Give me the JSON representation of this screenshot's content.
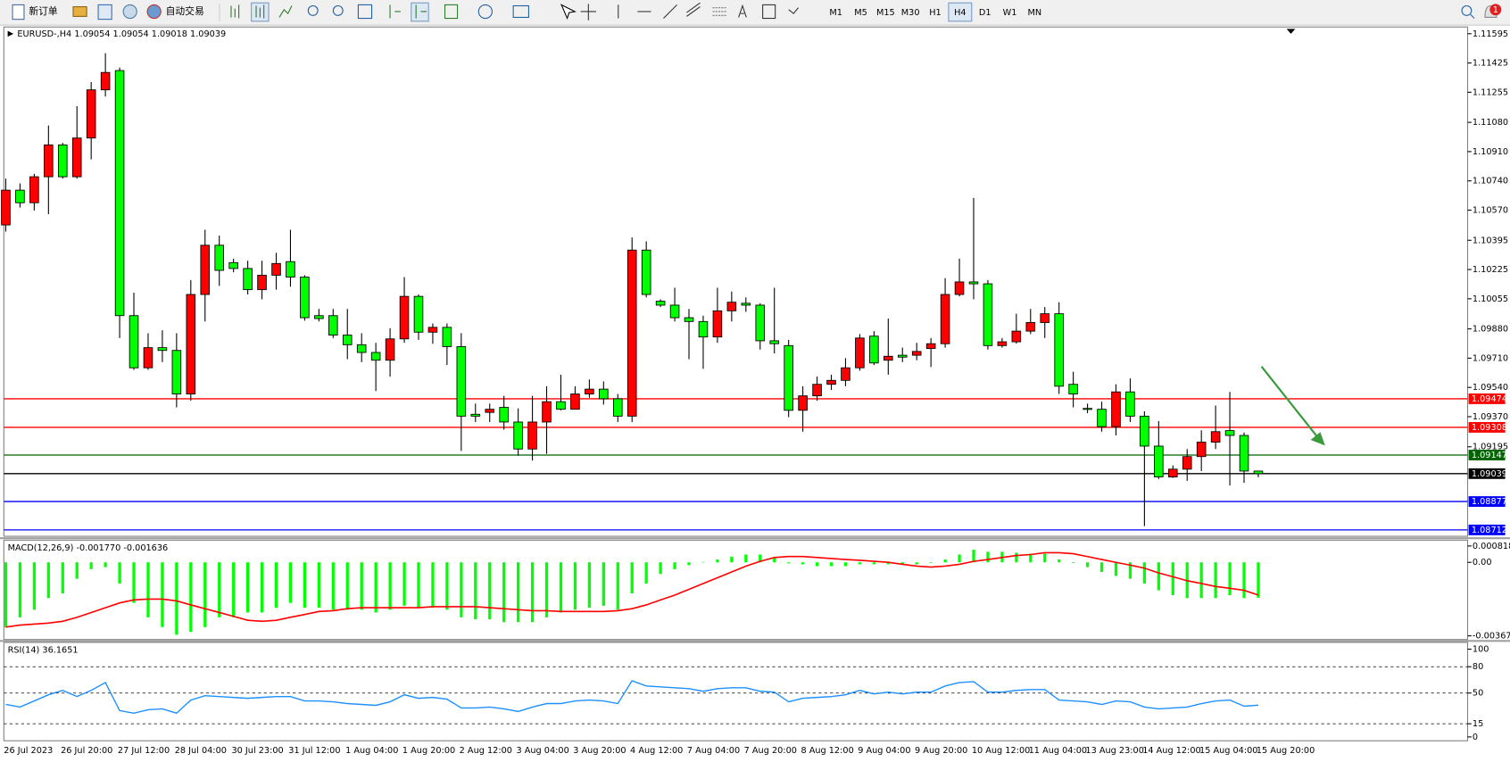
{
  "toolbar": {
    "new_order": "新订单",
    "auto_trading": "自动交易",
    "timeframes": [
      "M1",
      "M5",
      "M15",
      "M30",
      "H1",
      "H4",
      "D1",
      "W1",
      "MN"
    ],
    "active_timeframe": "H4",
    "notifications": 1
  },
  "chart_data": [
    {
      "type": "candlestick",
      "title": "EURUSD-,H4 1.09054 1.09054 1.09018 1.09039",
      "categories": [
        "26 Jul 2023",
        null,
        null,
        null,
        "26 Jul 20:00",
        null,
        null,
        null,
        "27 Jul 12:00",
        null,
        null,
        null,
        "28 Jul 04:00",
        null,
        null,
        null,
        "30 Jul 23:00",
        null,
        null,
        null,
        "31 Jul 12:00",
        null,
        null,
        null,
        "1 Aug 04:00",
        null,
        null,
        null,
        "1 Aug 20:00",
        null,
        null,
        null,
        "2 Aug 12:00",
        null,
        null,
        null,
        "3 Aug 04:00",
        null,
        null,
        null,
        "3 Aug 20:00",
        null,
        null,
        null,
        "4 Aug 12:00",
        null,
        null,
        null,
        "7 Aug 04:00",
        null,
        null,
        null,
        "7 Aug 20:00",
        null,
        null,
        null,
        "8 Aug 12:00",
        null,
        null,
        null,
        "9 Aug 04:00",
        null,
        null,
        null,
        "9 Aug 20:00",
        null,
        null,
        null,
        "10 Aug 12:00",
        null,
        null,
        null,
        "11 Aug 04:00",
        null,
        null,
        null,
        "13 Aug 23:00",
        null,
        null,
        null,
        "14 Aug 12:00",
        null,
        null,
        null,
        "15 Aug 04:00",
        null,
        null,
        null,
        "15 Aug 20:00"
      ],
      "open": [
        1.10484,
        1.10686,
        1.10613,
        1.10764,
        1.10949,
        1.10764,
        1.10989,
        1.11269,
        1.11381,
        1.09957,
        1.09654,
        1.09771,
        1.09755,
        1.09502,
        1.1008,
        1.10366,
        1.10265,
        1.10231,
        1.10108,
        1.10192,
        1.10271,
        1.10181,
        1.09957,
        1.09957,
        1.09844,
        1.09788,
        1.09743,
        1.09698,
        1.09822,
        1.10069,
        1.09861,
        1.09889,
        1.09777,
        1.09384,
        1.09395,
        1.09424,
        1.09339,
        1.09182,
        1.09339,
        1.09457,
        1.09413,
        1.09502,
        1.0953,
        1.09474,
        1.09373,
        1.10338,
        1.10041,
        1.10018,
        1.09945,
        1.09923,
        1.09833,
        1.09985,
        1.10029,
        1.10018,
        1.09811,
        1.09783,
        1.09407,
        1.09491,
        1.09558,
        1.09581,
        1.09654,
        1.09838,
        1.09698,
        1.09727,
        1.09727,
        1.09766,
        1.09794,
        1.1008,
        1.10153,
        1.10142,
        1.09783,
        1.09805,
        1.09867,
        1.09917,
        1.09968,
        1.09558,
        1.09418,
        1.09413,
        1.09312,
        1.09514,
        1.09373,
        1.09199,
        1.0902,
        1.09065,
        1.09138,
        1.09222,
        1.09289,
        1.09261,
        1.09054
      ],
      "high": [
        1.10753,
        1.10725,
        1.10781,
        1.11062,
        1.10961,
        1.11174,
        1.11314,
        1.11482,
        1.11398,
        1.10091,
        1.09855,
        1.09872,
        1.09855,
        1.10164,
        1.10456,
        1.10422,
        1.10288,
        1.10276,
        1.10276,
        1.10322,
        1.10456,
        1.10192,
        1.09996,
        1.09996,
        1.09996,
        1.09855,
        1.09799,
        1.09884,
        1.10181,
        1.1008,
        1.09912,
        1.09912,
        1.09855,
        1.09446,
        1.09446,
        1.09491,
        1.09418,
        1.09491,
        1.09547,
        1.09614,
        1.09547,
        1.09586,
        1.09575,
        1.09502,
        1.10411,
        1.10389,
        1.10052,
        1.10119,
        1.09996,
        1.09957,
        1.10119,
        1.10097,
        1.10063,
        1.10029,
        1.10119,
        1.09816,
        1.09547,
        1.09603,
        1.09614,
        1.0971,
        1.0985,
        1.09867,
        1.0994,
        1.09771,
        1.09799,
        1.09827,
        1.10175,
        1.10288,
        1.10641,
        1.10164,
        1.09827,
        1.09968,
        1.09996,
        1.10007,
        1.10035,
        1.09631,
        1.09446,
        1.09457,
        1.09558,
        1.09592,
        1.09401,
        1.09345,
        1.09087,
        1.09182,
        1.09291,
        1.09435,
        1.09514,
        1.09278,
        1.09054
      ],
      "low": [
        1.10445,
        1.10585,
        1.10568,
        1.10546,
        1.10753,
        1.10753,
        1.10865,
        1.1123,
        1.09827,
        1.09642,
        1.09642,
        1.09687,
        1.09424,
        1.09463,
        1.09923,
        1.1013,
        1.10209,
        1.1008,
        1.10052,
        1.10108,
        1.10125,
        1.09928,
        1.09923,
        1.09827,
        1.09704,
        1.09687,
        1.09519,
        1.09603,
        1.09799,
        1.09816,
        1.09794,
        1.0967,
        1.09171,
        1.09339,
        1.09339,
        1.09295,
        1.09143,
        1.09115,
        1.09154,
        1.09407,
        1.09412,
        1.0948,
        1.0944,
        1.09339,
        1.09339,
        1.10063,
        1.10007,
        1.09923,
        1.09704,
        1.09648,
        1.09799,
        1.09923,
        1.09979,
        1.0976,
        1.09738,
        1.09367,
        1.09283,
        1.09463,
        1.09525,
        1.09547,
        1.09637,
        1.0967,
        1.09614,
        1.09687,
        1.09698,
        1.09659,
        1.09771,
        1.10069,
        1.10052,
        1.0976,
        1.09771,
        1.09794,
        1.0985,
        1.09827,
        1.09502,
        1.09424,
        1.0939,
        1.09283,
        1.09261,
        1.09339,
        1.08734,
        1.09008,
        1.09014,
        1.08997,
        1.09054,
        1.09182,
        1.0897,
        1.08986,
        1.09018
      ],
      "close": [
        1.10686,
        1.10613,
        1.10764,
        1.10949,
        1.10764,
        1.10989,
        1.11269,
        1.1137,
        1.09957,
        1.09654,
        1.09771,
        1.09755,
        1.09502,
        1.1008,
        1.10366,
        1.1022,
        1.10231,
        1.10108,
        1.10192,
        1.1026,
        1.10181,
        1.09945,
        1.0994,
        1.09844,
        1.09788,
        1.09743,
        1.09698,
        1.09822,
        1.10069,
        1.09861,
        1.09889,
        1.09777,
        1.09373,
        1.09373,
        1.09413,
        1.09339,
        1.09182,
        1.09339,
        1.09457,
        1.09413,
        1.09502,
        1.0953,
        1.09474,
        1.09373,
        1.10338,
        1.1008,
        1.10018,
        1.09945,
        1.09923,
        1.09833,
        1.09985,
        1.10035,
        1.10018,
        1.09811,
        1.09794,
        1.09407,
        1.09491,
        1.09558,
        1.09581,
        1.09654,
        1.09827,
        1.09682,
        1.09721,
        1.09716,
        1.09749,
        1.09794,
        1.1008,
        1.10153,
        1.10142,
        1.09783,
        1.09805,
        1.09867,
        1.09917,
        1.09968,
        1.09547,
        1.09502,
        1.09412,
        1.09312,
        1.09514,
        1.09373,
        1.09199,
        1.0902,
        1.09065,
        1.09138,
        1.09222,
        1.09283,
        1.09261,
        1.09054,
        1.09039
      ],
      "up_color": "#ff0000",
      "down_color": "#00ff00",
      "ylim": [
        1.08675,
        1.11634
      ],
      "yticks": [
        1.11595,
        1.11425,
        1.11255,
        {
          "value": 1.1108,
          "label": "1.11080"
        },
        {
          "value": 1.1091,
          "label": "1.10910"
        },
        {
          "value": 1.1074,
          "label": "1.10740"
        },
        {
          "value": 1.1057,
          "label": "1.10570"
        },
        1.10395,
        1.10225,
        1.10055,
        {
          "value": 1.0988,
          "label": "1.09880"
        },
        {
          "value": 1.0971,
          "label": "1.09710"
        },
        {
          "value": 1.0954,
          "label": "1.09540"
        },
        {
          "value": 1.0937,
          "label": "1.09370"
        },
        1.09195
      ],
      "levels": [
        {
          "value": 1.09474,
          "color": "#ff0000"
        },
        {
          "value": 1.09308,
          "color": "#ff0000"
        },
        {
          "value": 1.09147,
          "color": "#006400"
        },
        {
          "value": 1.09039,
          "color": "#000000"
        },
        {
          "value": 1.08877,
          "color": "#0000ff"
        },
        {
          "value": 1.08712,
          "color": "#0000ff"
        }
      ]
    },
    {
      "type": "macd",
      "title": "MACD(12,26,9) -0.001770 -0.001636",
      "values": [
        -0.00324,
        -0.00275,
        -0.00237,
        -0.00179,
        -0.00155,
        -0.00082,
        -0.00034,
        -0.00024,
        -0.00106,
        -0.00203,
        -0.00275,
        -0.00324,
        -0.00362,
        -0.00348,
        -0.00324,
        -0.00275,
        -0.00275,
        -0.00251,
        -0.00251,
        -0.00227,
        -0.00203,
        -0.00227,
        -0.00227,
        -0.00237,
        -0.00237,
        -0.00237,
        -0.00251,
        -0.00237,
        -0.00217,
        -0.00227,
        -0.00227,
        -0.00237,
        -0.00275,
        -0.00285,
        -0.00285,
        -0.00299,
        -0.00299,
        -0.00299,
        -0.00275,
        -0.00251,
        -0.00237,
        -0.00227,
        -0.00217,
        -0.00237,
        -0.00155,
        -0.00106,
        -0.00058,
        -0.00034,
        -0.00014,
        2e-05,
        0.00014,
        0.00029,
        0.00039,
        0.00039,
        0.00024,
        -5e-05,
        -0.0001,
        -0.00019,
        -0.00019,
        -0.00019,
        -0.0001,
        -0.0001,
        -0.0001,
        -0.0001,
        -0.0001,
        -3e-05,
        0.00014,
        0.00039,
        0.00063,
        0.00053,
        0.00053,
        0.00048,
        0.00043,
        0.00043,
        0.00014,
        -3e-05,
        -0.00024,
        -0.00048,
        -0.00068,
        -0.00082,
        -0.00106,
        -0.0014,
        -0.00164,
        -0.00179,
        -0.00179,
        -0.00179,
        -0.00164,
        -0.00179,
        -0.00177
      ],
      "signal": [
        -0.00324,
        -0.00314,
        -0.00309,
        -0.00304,
        -0.00295,
        -0.00275,
        -0.00251,
        -0.00227,
        -0.00203,
        -0.00188,
        -0.00184,
        -0.00184,
        -0.00193,
        -0.00213,
        -0.00232,
        -0.00251,
        -0.0027,
        -0.0029,
        -0.00295,
        -0.0029,
        -0.00275,
        -0.00261,
        -0.00246,
        -0.00242,
        -0.00232,
        -0.00227,
        -0.00227,
        -0.00227,
        -0.00227,
        -0.00227,
        -0.00222,
        -0.00222,
        -0.00222,
        -0.00222,
        -0.00227,
        -0.00232,
        -0.00237,
        -0.00242,
        -0.00242,
        -0.00246,
        -0.00246,
        -0.00246,
        -0.00246,
        -0.00242,
        -0.00232,
        -0.00213,
        -0.00188,
        -0.00164,
        -0.00135,
        -0.00106,
        -0.00077,
        -0.00048,
        -0.00019,
        5e-05,
        0.00024,
        0.00029,
        0.00029,
        0.00024,
        0.00019,
        0.00014,
        0.0001,
        5e-05,
        0,
        -0.0001,
        -0.00019,
        -0.00024,
        -0.00019,
        -0.0001,
        5e-05,
        0.00014,
        0.00024,
        0.00034,
        0.00039,
        0.00048,
        0.00048,
        0.00043,
        0.00029,
        0.00014,
        0,
        -0.00014,
        -0.00029,
        -0.00053,
        -0.00072,
        -0.00092,
        -0.00106,
        -0.00121,
        -0.0013,
        -0.0014,
        -0.001636
      ],
      "color": "#00ff00",
      "signal_color": "#ff0000",
      "ylim": [
        -0.00386,
        0.00111
      ],
      "yticks": [
        0.000818,
        {
          "value": 0,
          "label": "0.00"
        },
        -0.003677
      ]
    },
    {
      "type": "line",
      "title": "RSI(14) 36.1651",
      "values": [
        37,
        34,
        41,
        48,
        53,
        46,
        53,
        62,
        30,
        27,
        31,
        32,
        27,
        42,
        47,
        46,
        45,
        44,
        45,
        46,
        46,
        41,
        41,
        40,
        38,
        37,
        36,
        40,
        48,
        44,
        45,
        43,
        33,
        33,
        34,
        32,
        29,
        34,
        38,
        38,
        41,
        42,
        41,
        38,
        64,
        58,
        57,
        56,
        55,
        52,
        55,
        56,
        56,
        52,
        51,
        40,
        44,
        45,
        46,
        48,
        53,
        49,
        51,
        49,
        51,
        51,
        58,
        62,
        63,
        51,
        51,
        53,
        54,
        54,
        42,
        41,
        40,
        37,
        41,
        40,
        34,
        32,
        33,
        34,
        38,
        41,
        42,
        35,
        36.1651
      ],
      "color": "#1e90ff",
      "ylim": [
        -4.4,
        107.7
      ],
      "yticks": [
        100,
        80,
        50,
        15,
        0
      ],
      "levels": [
        80,
        50,
        15
      ]
    }
  ]
}
